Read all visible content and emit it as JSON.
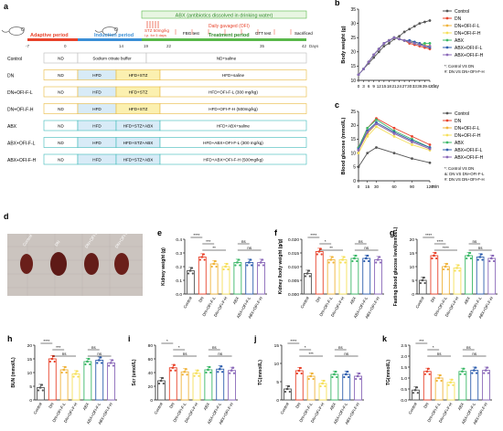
{
  "panel_letters": [
    "a",
    "b",
    "c",
    "d",
    "e",
    "f",
    "g",
    "h",
    "i",
    "j",
    "k"
  ],
  "colors": {
    "Control": "#555555",
    "DN": "#e8432b",
    "DN+OFI-F-L": "#f0b43c",
    "DN+OFI-F-H": "#f6e05a",
    "ABX": "#3cb868",
    "ABX+OFI-F-L": "#2f5fae",
    "ABX+OFI-F-H": "#8a68b8"
  },
  "timeline": {
    "abx_label": "ABX (antibiotics dissolved in drinking water)",
    "stz_label": "STZ 50mg/kg",
    "stz_sub": "i.p. for 5 days",
    "gavage_label": "Daily gavaged (OFI)",
    "phases": [
      "Adaptive period",
      "Induction period",
      "Treatment period"
    ],
    "tests": [
      "FBG test",
      "GTT test",
      "Sacrificed"
    ],
    "ticks": [
      "-7",
      "0",
      "14",
      "19",
      "22",
      "35",
      "42",
      "Days"
    ]
  },
  "groups": [
    {
      "name": "Control",
      "ticks": [
        "ND",
        "Sodium citrate buffer",
        "ND+saline"
      ]
    },
    {
      "name": "DN",
      "ticks": [
        "ND",
        "HFD",
        "HFD+STZ",
        "HFD+saline"
      ]
    },
    {
      "name": "DN+OFI-F-L",
      "ticks": [
        "ND",
        "HFD",
        "HFD+STZ",
        "HFD+OFI-F-L (300 mg/kg)"
      ]
    },
    {
      "name": "DN+OFI-F-H",
      "ticks": [
        "ND",
        "HFD",
        "HFD+STZ",
        "HFD+OFI-F-H (500mg/kg)"
      ]
    },
    {
      "name": "ABX",
      "ticks": [
        "ND",
        "HFD",
        "HFD+STZ+ABX",
        "HFD+ABX+saline"
      ]
    },
    {
      "name": "ABX+OFI-F-L",
      "ticks": [
        "ND",
        "HFD",
        "HFD+STZ+ABX",
        "HFD+ABX+OFI-F-L (300 mg/kg)"
      ]
    },
    {
      "name": "ABX+OFI-F-H",
      "ticks": [
        "ND",
        "HFD",
        "HFD+STZ+ABX",
        "HFD+ABX+OFI-F-H (500mg/kg)"
      ]
    }
  ],
  "photo_labels": [
    "Control",
    "DN",
    "DN+OFI-F-L",
    "DN+OFI-F-H"
  ],
  "bar_categories": [
    "Control",
    "DN",
    "DN+OFI-F-L",
    "DN+OFI-F-H",
    "ABX",
    "ABX+OFI-F-L",
    "ABX+OFI-F-H"
  ],
  "chart_data": [
    {
      "id": "b",
      "type": "line",
      "ylabel": "Body weight (g)",
      "xlabel": "day",
      "x": [
        0,
        3,
        6,
        9,
        12,
        15,
        18,
        21,
        24,
        27,
        30,
        33,
        36,
        39,
        42
      ],
      "ylim": [
        10,
        35
      ],
      "yticks": [
        10,
        15,
        20,
        25,
        30,
        35
      ],
      "series": [
        {
          "name": "Control",
          "values": [
            12,
            14,
            16,
            18,
            20,
            22,
            23,
            24.5,
            25.5,
            27,
            28,
            29,
            30,
            30.5,
            31
          ]
        },
        {
          "name": "DN",
          "values": [
            12,
            14,
            16.5,
            19,
            21,
            23,
            24,
            25,
            24.5,
            24,
            23,
            22.5,
            22,
            21.5,
            21
          ]
        },
        {
          "name": "DN+OFI-F-L",
          "values": [
            12,
            14,
            16.5,
            19,
            21,
            23,
            24,
            25,
            24.5,
            24,
            23.5,
            23,
            22.5,
            22,
            22
          ]
        },
        {
          "name": "DN+OFI-F-H",
          "values": [
            12,
            14,
            16.5,
            19,
            21,
            23,
            24,
            25,
            24.5,
            24,
            23.5,
            23.5,
            23,
            22.5,
            22
          ]
        },
        {
          "name": "ABX",
          "values": [
            12,
            14,
            16.5,
            19,
            21,
            23,
            24,
            25,
            24.5,
            24,
            23.5,
            23,
            22.5,
            23,
            23
          ]
        },
        {
          "name": "ABX+OFI-F-L",
          "values": [
            12,
            14,
            16.5,
            19,
            21,
            23,
            24,
            25,
            24.5,
            24,
            24,
            23.5,
            23,
            22,
            21.5
          ]
        },
        {
          "name": "ABX+OFI-F-H",
          "values": [
            12,
            14,
            16.5,
            19,
            21,
            23,
            24,
            25,
            24.5,
            24,
            23.5,
            23,
            22.5,
            22,
            22
          ]
        }
      ],
      "notes": [
        "*: Control VS DN",
        "#: DN VS DN+OFI-F-H"
      ]
    },
    {
      "id": "c",
      "type": "line",
      "ylabel": "Blood glucose (mmol/L)",
      "xlabel": "min",
      "x": [
        0,
        15,
        30,
        60,
        90,
        120
      ],
      "ylim": [
        0,
        25
      ],
      "yticks": [
        0,
        5,
        10,
        15,
        20,
        25
      ],
      "series": [
        {
          "name": "Control",
          "values": [
            5,
            10,
            12,
            10,
            8,
            6.5
          ]
        },
        {
          "name": "DN",
          "values": [
            12,
            19,
            22.5,
            19,
            16,
            13
          ]
        },
        {
          "name": "DN+OFI-F-L",
          "values": [
            11,
            17,
            20.5,
            17,
            14,
            11.5
          ]
        },
        {
          "name": "DN+OFI-F-H",
          "values": [
            10,
            16,
            19.5,
            16,
            13,
            11
          ]
        },
        {
          "name": "ABX",
          "values": [
            12,
            19,
            22,
            18,
            15,
            12
          ]
        },
        {
          "name": "ABX+OFI-F-L",
          "values": [
            11.5,
            18,
            21,
            17.5,
            14.5,
            12
          ]
        },
        {
          "name": "ABX+OFI-F-H",
          "values": [
            11,
            17.5,
            20.5,
            17,
            14,
            11.5
          ]
        }
      ],
      "notes": [
        "*: Control VS DN",
        "&: DN VS DN+OFI-F-L",
        "#: DN VS DN+OFI-F-H"
      ]
    },
    {
      "id": "e",
      "type": "bar",
      "ylabel": "Kidney weight (g)",
      "ylim": [
        0,
        0.4
      ],
      "yticks": [
        "0.0",
        "0.1",
        "0.2",
        "0.3",
        "0.4"
      ],
      "values": [
        0.17,
        0.27,
        0.22,
        0.2,
        0.23,
        0.23,
        0.23
      ],
      "sig": [
        "****",
        "***",
        "**",
        "ns",
        "ns"
      ]
    },
    {
      "id": "f",
      "type": "bar",
      "ylabel": "Kidney /body weight (g/g)",
      "ylim": [
        0,
        0.02
      ],
      "yticks": [
        "0.000",
        "0.005",
        "0.010",
        "0.015",
        "0.020"
      ],
      "values": [
        0.0075,
        0.0155,
        0.0125,
        0.0125,
        0.013,
        0.013,
        0.0125
      ],
      "sig": [
        "****",
        "*",
        "**",
        "ns",
        "ns"
      ]
    },
    {
      "id": "g",
      "type": "bar",
      "ylabel": "Fasting blood glucose level(mmol/L)",
      "ylim": [
        0,
        20
      ],
      "yticks": [
        "0",
        "5",
        "10",
        "15",
        "20"
      ],
      "values": [
        5,
        14,
        10,
        9.5,
        14,
        13.5,
        13
      ],
      "sig": [
        "****",
        "****",
        "****",
        "ns",
        "ns"
      ]
    },
    {
      "id": "h",
      "type": "bar",
      "ylabel": "BUN (mmol/L)",
      "ylim": [
        0,
        20
      ],
      "yticks": [
        "0",
        "5",
        "10",
        "15",
        "20"
      ],
      "values": [
        4.5,
        15,
        11,
        9.5,
        14,
        14.5,
        13.5
      ],
      "sig": [
        "****",
        "***",
        "ns",
        "ns",
        "ns"
      ]
    },
    {
      "id": "i",
      "type": "bar",
      "ylabel": "Scr (umol/L)",
      "ylim": [
        0,
        80
      ],
      "yticks": [
        "0",
        "20",
        "40",
        "60",
        "80"
      ],
      "values": [
        28,
        47,
        41,
        39,
        44,
        45,
        43
      ],
      "sig": [
        "*",
        "*",
        "ns",
        "ns",
        "ns"
      ]
    },
    {
      "id": "j",
      "type": "bar",
      "ylabel": "TC(mmol/L)",
      "ylim": [
        0,
        15
      ],
      "yticks": [
        "0",
        "5",
        "10",
        "15"
      ],
      "values": [
        3,
        8,
        6.5,
        4.5,
        7,
        7,
        6.5
      ],
      "sig": [
        "****",
        "*",
        "***",
        "ns",
        "ns"
      ]
    },
    {
      "id": "k",
      "type": "bar",
      "ylabel": "TG(mmol/L)",
      "ylim": [
        0,
        2.5
      ],
      "yticks": [
        "0.0",
        "0.5",
        "1.0",
        "1.5",
        "2.0",
        "2.5"
      ],
      "values": [
        0.45,
        1.3,
        1.0,
        0.8,
        1.3,
        1.35,
        1.35
      ],
      "sig": [
        "***",
        "*",
        "ns",
        "ns",
        "ns"
      ]
    }
  ]
}
